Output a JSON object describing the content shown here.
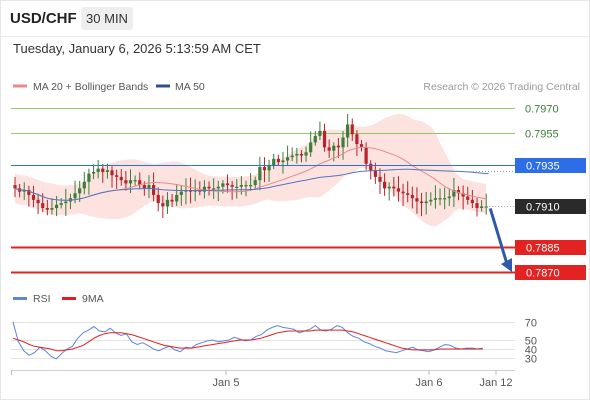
{
  "header": {
    "pair": "USD/CHF",
    "timeframe": "30 MIN",
    "datetime": "Tuesday, January 6, 2026 5:13:59 AM CET"
  },
  "legend": {
    "ma20": "MA 20 + Bollinger Bands",
    "ma50": "MA 50",
    "copyright": "Research © 2026 Trading Central",
    "rsi": "RSI",
    "ma9": "9MA"
  },
  "colors": {
    "up": "#3e7d3a",
    "down": "#b8232a",
    "ma20": "#e88a8a",
    "band": "#fbd9d6",
    "ma50": "#5275c0",
    "support": "#e32222",
    "resistance": "#90c86a",
    "current": "#2a2a2a",
    "blue_label": "#2d6ee8",
    "rsi": "#5f86d9",
    "rsi_ma": "#e02020"
  },
  "chart_data": [
    {
      "type": "candlestick",
      "title": "USD/CHF",
      "timeframe": "30 MIN",
      "ylim": [
        0.7862,
        0.7978
      ],
      "x_ticks": [
        "Jan 5",
        "Jan 6",
        "Jan 12"
      ],
      "levels": [
        {
          "label": "0.7970",
          "value": 0.797,
          "kind": "resistance"
        },
        {
          "label": "0.7955",
          "value": 0.7955,
          "kind": "resistance"
        },
        {
          "label": "0.7935",
          "value": 0.7935,
          "kind": "pivot"
        },
        {
          "label": "0.7910",
          "value": 0.791,
          "kind": "current"
        },
        {
          "label": "0.7885",
          "value": 0.7885,
          "kind": "support"
        },
        {
          "label": "0.7870",
          "value": 0.787,
          "kind": "support"
        }
      ],
      "projection": {
        "from": 0.791,
        "to": 0.787
      },
      "closes": [
        0.7921,
        0.7919,
        0.792,
        0.7917,
        0.7914,
        0.7912,
        0.7909,
        0.7908,
        0.7909,
        0.7911,
        0.7912,
        0.7913,
        0.7915,
        0.7918,
        0.7921,
        0.7925,
        0.793,
        0.7931,
        0.7933,
        0.7931,
        0.7932,
        0.7929,
        0.7928,
        0.7926,
        0.7924,
        0.7926,
        0.7926,
        0.7923,
        0.7921,
        0.7923,
        0.7917,
        0.7912,
        0.791,
        0.7914,
        0.7913,
        0.7917,
        0.7919,
        0.792,
        0.7919,
        0.792,
        0.7919,
        0.7922,
        0.7921,
        0.7921,
        0.7922,
        0.7924,
        0.7923,
        0.7922,
        0.7922,
        0.7923,
        0.7923,
        0.7923,
        0.7926,
        0.7934,
        0.7932,
        0.7935,
        0.7939,
        0.7937,
        0.7938,
        0.794,
        0.7941,
        0.7942,
        0.7941,
        0.7943,
        0.7949,
        0.7953,
        0.7956,
        0.7946,
        0.7944,
        0.7947,
        0.7946,
        0.7952,
        0.796,
        0.7954,
        0.7948,
        0.7946,
        0.7936,
        0.7932,
        0.7928,
        0.7925,
        0.7921,
        0.7922,
        0.7921,
        0.7919,
        0.7918,
        0.7917,
        0.7915,
        0.7913,
        0.7912,
        0.7913,
        0.7914,
        0.7915,
        0.7915,
        0.7915,
        0.7916,
        0.792,
        0.7918,
        0.7916,
        0.7914,
        0.7912,
        0.7909,
        0.791,
        0.791
      ]
    },
    {
      "type": "line",
      "title": "RSI",
      "ylim": [
        20,
        80
      ],
      "y_ticks": [
        "70",
        "50",
        "40",
        "30"
      ],
      "series": [
        {
          "name": "RSI",
          "values": [
            70,
            48,
            38,
            33,
            36,
            42,
            38,
            32,
            29,
            35,
            40,
            43,
            52,
            58,
            61,
            65,
            60,
            59,
            63,
            58,
            55,
            57,
            48,
            45,
            47,
            44,
            40,
            38,
            41,
            43,
            39,
            37,
            42,
            41,
            45,
            47,
            49,
            50,
            48,
            49,
            50,
            53,
            51,
            49,
            50,
            54,
            56,
            61,
            64,
            66,
            64,
            63,
            62,
            58,
            60,
            62,
            66,
            61,
            60,
            62,
            66,
            64,
            58,
            54,
            52,
            48,
            46,
            43,
            41,
            38,
            37,
            36,
            38,
            40,
            42,
            39,
            38,
            37,
            39,
            42,
            45,
            44,
            41,
            40,
            41,
            41,
            40,
            41
          ]
        },
        {
          "name": "9MA",
          "values": [
            52,
            50,
            48,
            45,
            43,
            42,
            41,
            40,
            38,
            38,
            39,
            40,
            42,
            44,
            48,
            52,
            55,
            57,
            58,
            58,
            58,
            57,
            56,
            54,
            52,
            50,
            48,
            46,
            44,
            43,
            42,
            41,
            41,
            41,
            42,
            43,
            44,
            45,
            46,
            47,
            48,
            49,
            50,
            50,
            50,
            51,
            52,
            54,
            56,
            58,
            59,
            60,
            60,
            60,
            60,
            60,
            61,
            61,
            61,
            61,
            61,
            61,
            60,
            59,
            57,
            55,
            53,
            51,
            49,
            47,
            45,
            43,
            41,
            40,
            39,
            39,
            39,
            39,
            39,
            40,
            40,
            40,
            40,
            40,
            40,
            40,
            40,
            40
          ]
        }
      ]
    }
  ]
}
